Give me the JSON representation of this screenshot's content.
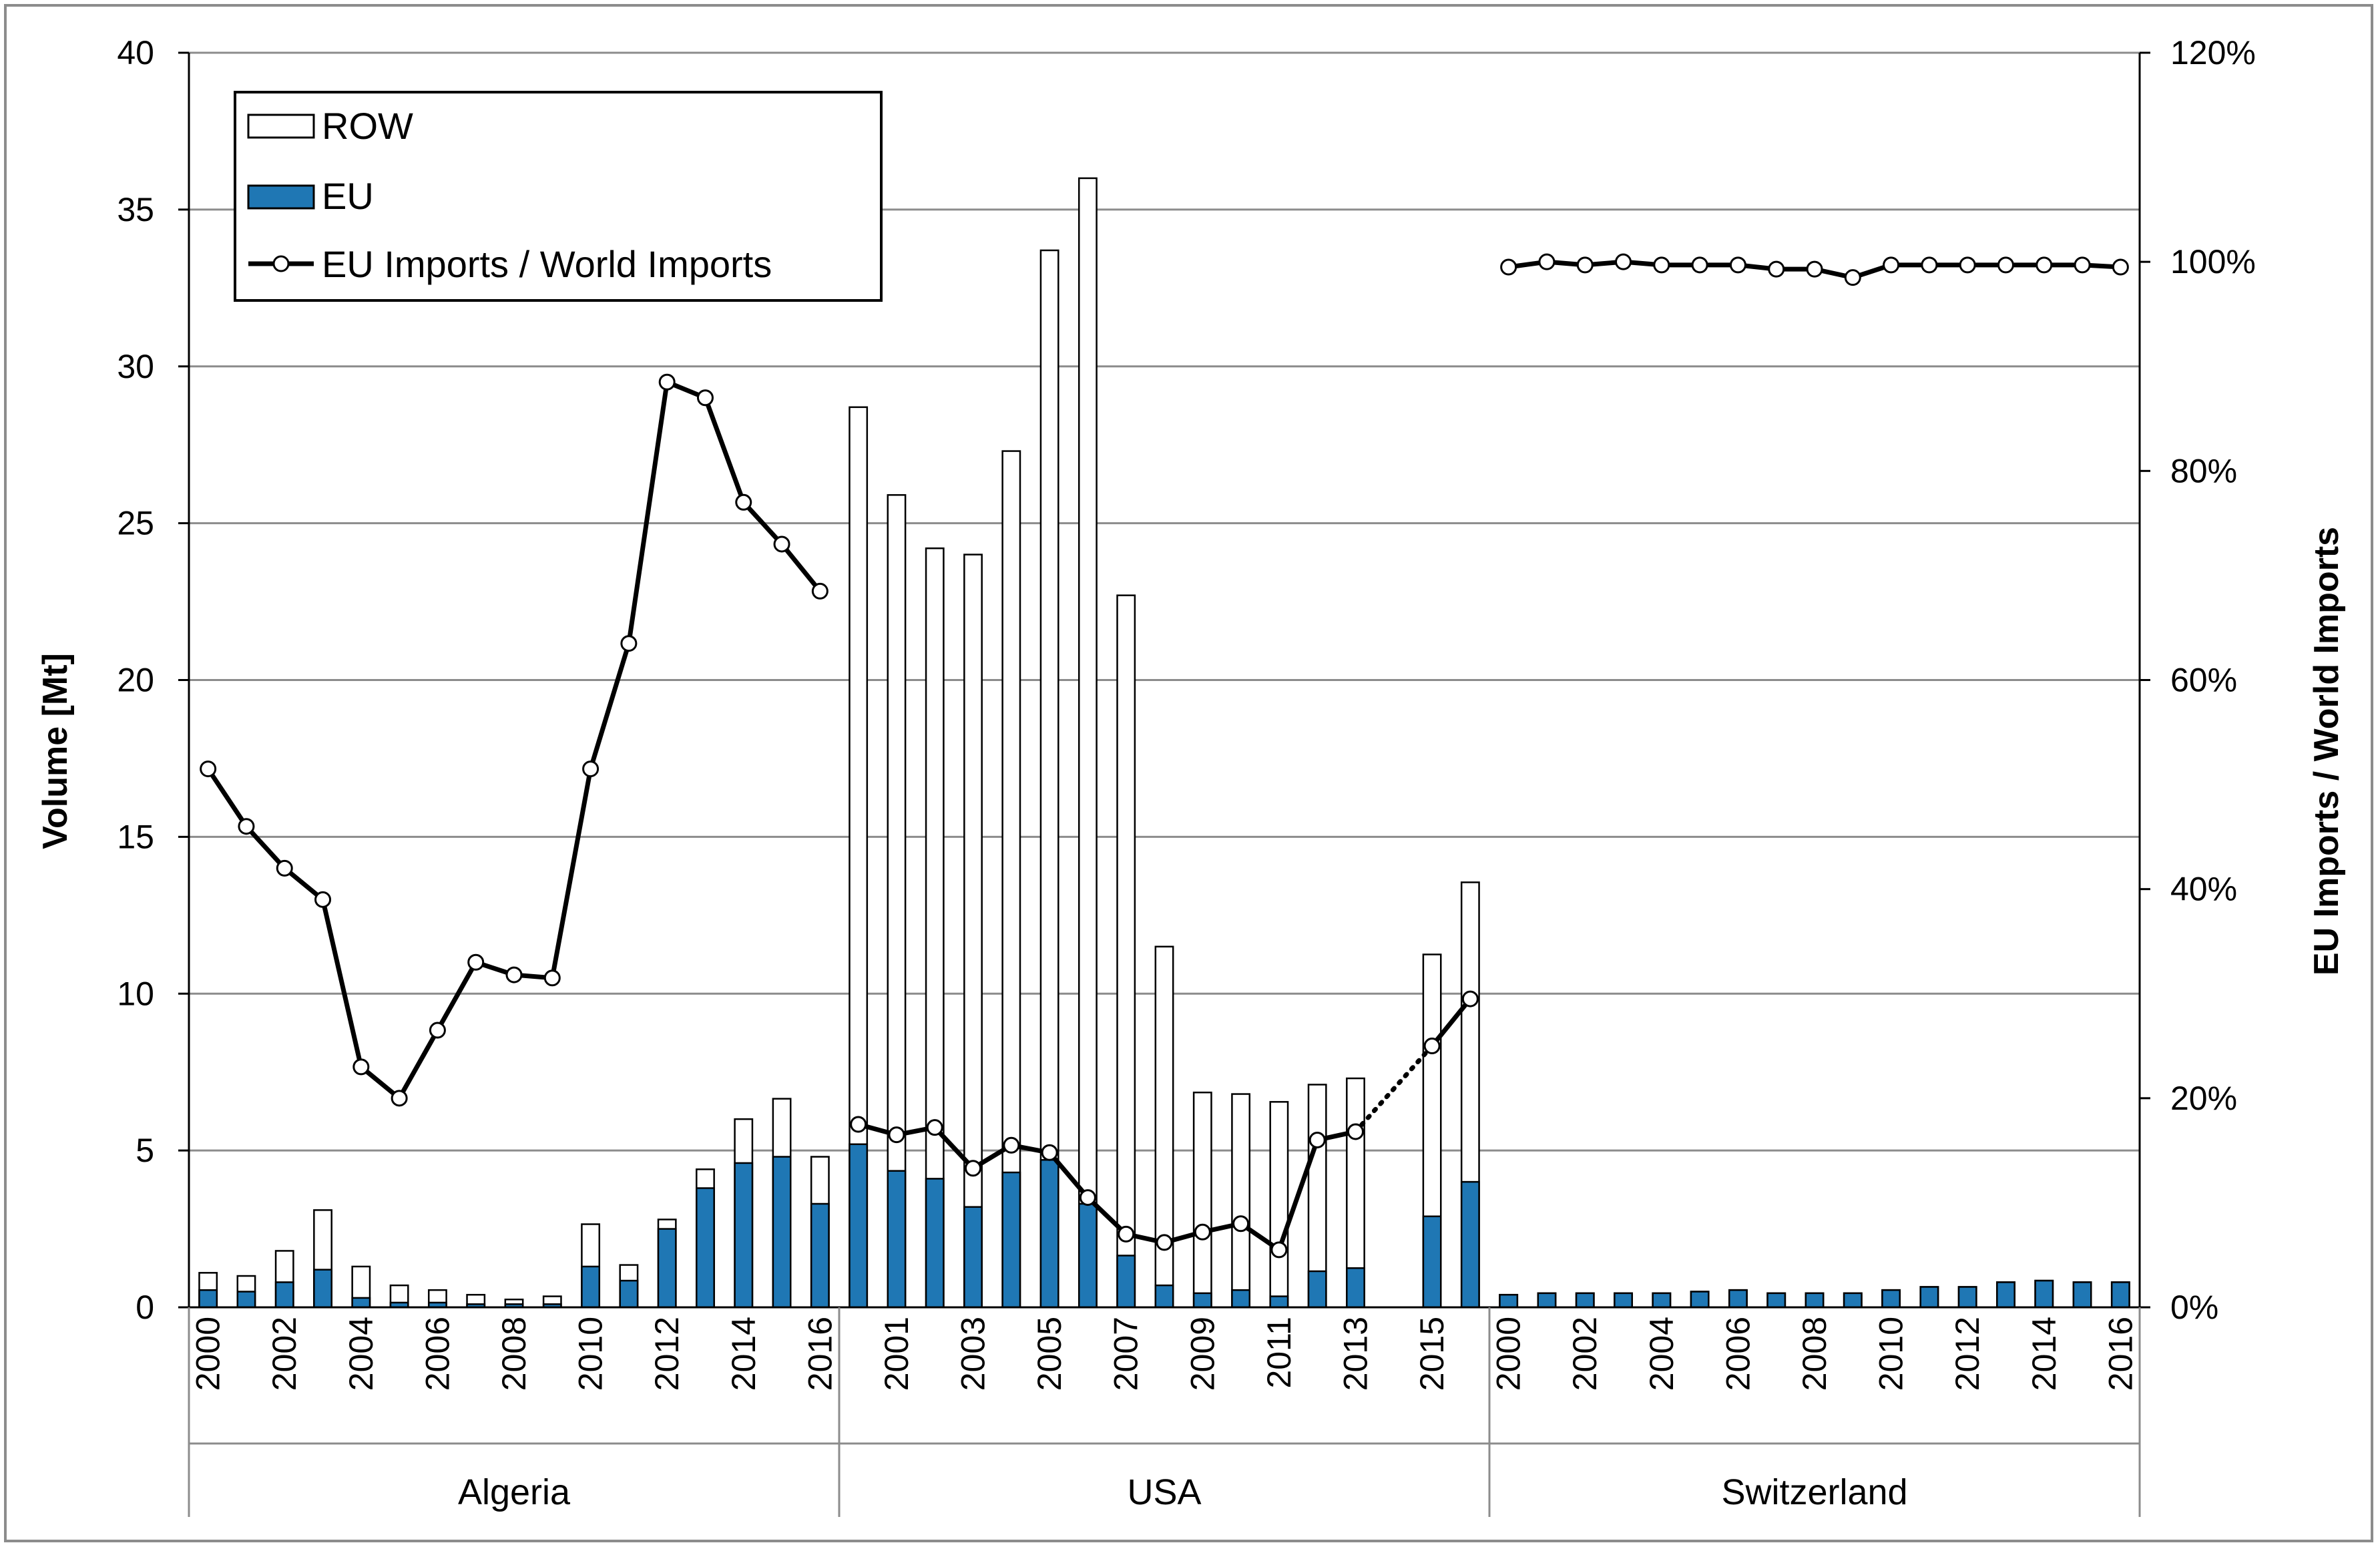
{
  "chart_data": {
    "type": "bar",
    "title": "",
    "ylabel_left": "Volume [Mt]",
    "ylabel_right": "EU Imports / World Imports",
    "ylim_left": [
      0,
      40
    ],
    "ylim_right": [
      0,
      1.2
    ],
    "yticks_left": [
      "0",
      "5",
      "10",
      "15",
      "20",
      "25",
      "30",
      "35",
      "40"
    ],
    "yticks_right": [
      "0%",
      "20%",
      "40%",
      "60%",
      "80%",
      "100%",
      "120%"
    ],
    "grid": true,
    "legend_position": "top-left",
    "legend": [
      {
        "key": "row",
        "label": "ROW"
      },
      {
        "key": "eu",
        "label": "EU"
      },
      {
        "key": "ratio",
        "label": "EU Imports / World Imports"
      }
    ],
    "colors": {
      "eu": "#1f77b4",
      "row": "#ffffff",
      "line": "#000000"
    },
    "groups": [
      {
        "name": "Algeria",
        "years": [
          "2000",
          "2001",
          "2002",
          "2003",
          "2004",
          "2005",
          "2006",
          "2007",
          "2008",
          "2009",
          "2010",
          "2011",
          "2012",
          "2013",
          "2014",
          "2015",
          "2016"
        ],
        "tick_labels": [
          "2000",
          "2002",
          "2004",
          "2006",
          "2008",
          "2010",
          "2012",
          "2014",
          "2016"
        ],
        "eu": [
          0.55,
          0.5,
          0.8,
          1.2,
          0.3,
          0.15,
          0.15,
          0.1,
          0.1,
          0.1,
          1.3,
          0.85,
          2.5,
          3.8,
          4.6,
          4.8,
          3.3
        ],
        "total": [
          1.1,
          1.0,
          1.8,
          3.1,
          1.3,
          0.7,
          0.55,
          0.4,
          0.25,
          0.35,
          2.65,
          1.35,
          2.8,
          4.4,
          6.0,
          6.65,
          4.8
        ],
        "ratio": [
          0.515,
          0.46,
          0.42,
          0.39,
          0.23,
          0.2,
          0.265,
          0.33,
          0.318,
          0.315,
          0.515,
          0.635,
          0.885,
          0.87,
          0.77,
          0.73,
          0.685
        ]
      },
      {
        "name": "USA",
        "years": [
          "2000",
          "2001",
          "2002",
          "2003",
          "2004",
          "2005",
          "2006",
          "2007",
          "2008",
          "2009",
          "2010",
          "2011",
          "2012",
          "2013",
          "2014",
          "2015",
          "2016"
        ],
        "tick_labels": [
          "2001",
          "2003",
          "2005",
          "2007",
          "2009",
          "2011",
          "2013",
          "2015"
        ],
        "eu": [
          5.2,
          4.35,
          4.1,
          3.2,
          4.3,
          4.7,
          3.3,
          1.65,
          0.7,
          0.45,
          0.55,
          0.35,
          1.15,
          1.25,
          null,
          2.9,
          4.0
        ],
        "total": [
          28.7,
          25.9,
          24.2,
          24.0,
          27.3,
          33.7,
          36.0,
          22.7,
          11.5,
          6.85,
          6.8,
          6.55,
          7.1,
          7.3,
          null,
          11.25,
          13.55
        ],
        "ratio": [
          0.175,
          0.165,
          0.172,
          0.133,
          0.155,
          0.148,
          0.105,
          0.07,
          0.062,
          0.072,
          0.08,
          0.055,
          0.16,
          0.168,
          null,
          0.25,
          0.295
        ]
      },
      {
        "name": "Switzerland",
        "years": [
          "2000",
          "2001",
          "2002",
          "2003",
          "2004",
          "2005",
          "2006",
          "2007",
          "2008",
          "2009",
          "2010",
          "2011",
          "2012",
          "2013",
          "2014",
          "2015",
          "2016"
        ],
        "tick_labels": [
          "2000",
          "2002",
          "2004",
          "2006",
          "2008",
          "2010",
          "2012",
          "2014",
          "2016"
        ],
        "eu": [
          0.4,
          0.45,
          0.45,
          0.45,
          0.45,
          0.5,
          0.55,
          0.45,
          0.45,
          0.45,
          0.55,
          0.65,
          0.65,
          0.8,
          0.85,
          0.8,
          0.8
        ],
        "total": [
          0.4,
          0.45,
          0.45,
          0.45,
          0.45,
          0.5,
          0.55,
          0.45,
          0.45,
          0.45,
          0.55,
          0.65,
          0.65,
          0.8,
          0.85,
          0.8,
          0.8
        ],
        "ratio": [
          0.995,
          1.0,
          0.997,
          1.0,
          0.997,
          0.997,
          0.997,
          0.993,
          0.993,
          0.985,
          0.997,
          0.997,
          0.997,
          0.997,
          0.997,
          0.997,
          0.995
        ]
      }
    ]
  }
}
